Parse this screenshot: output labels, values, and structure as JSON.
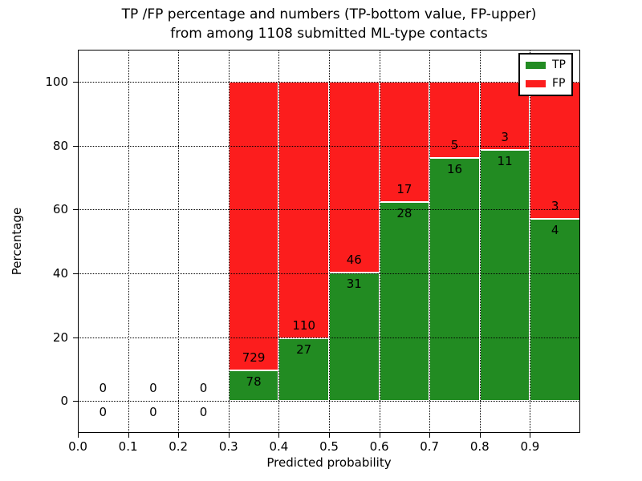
{
  "chart_data": {
    "type": "bar",
    "subtype": "stacked-percentage-histogram",
    "title_line1": "TP /FP percentage and numbers (TP-bottom value, FP-upper)",
    "title_line2": "from among 1108 submitted ML-type contacts",
    "xlabel": "Predicted probability",
    "ylabel": "Percentage",
    "xlim": [
      0.0,
      1.0
    ],
    "ylim": [
      -10,
      110
    ],
    "grid": "dotted",
    "legend_position": "upper right",
    "xtick_labels": [
      "0.0",
      "0.1",
      "0.2",
      "0.3",
      "0.4",
      "0.5",
      "0.6",
      "0.7",
      "0.8",
      "0.9"
    ],
    "ytick_values": [
      0,
      20,
      40,
      60,
      80,
      100
    ],
    "bin_width": 0.1,
    "bins": [
      {
        "x0": 0.0,
        "tp": 0,
        "fp": 0
      },
      {
        "x0": 0.1,
        "tp": 0,
        "fp": 0
      },
      {
        "x0": 0.2,
        "tp": 0,
        "fp": 0
      },
      {
        "x0": 0.3,
        "tp": 78,
        "fp": 729
      },
      {
        "x0": 0.4,
        "tp": 27,
        "fp": 110
      },
      {
        "x0": 0.5,
        "tp": 31,
        "fp": 46
      },
      {
        "x0": 0.6,
        "tp": 28,
        "fp": 17
      },
      {
        "x0": 0.7,
        "tp": 16,
        "fp": 5
      },
      {
        "x0": 0.8,
        "tp": 11,
        "fp": 3
      },
      {
        "x0": 0.9,
        "tp": 4,
        "fp": 3
      }
    ],
    "series": [
      {
        "name": "TP",
        "role": "bottom",
        "values": [
          0,
          0,
          0,
          78,
          27,
          31,
          28,
          16,
          11,
          4
        ]
      },
      {
        "name": "FP",
        "role": "upper",
        "values": [
          0,
          0,
          0,
          729,
          110,
          46,
          17,
          5,
          3,
          3
        ]
      }
    ],
    "total_contacts": 1108,
    "colors": {
      "tp": "#228b22",
      "fp": "#fc1d1d",
      "bar_edge": "#ffffff",
      "grid": "#000000"
    },
    "legend": [
      {
        "label": "TP",
        "color": "#228b22"
      },
      {
        "label": "FP",
        "color": "#fc1d1d"
      }
    ]
  }
}
